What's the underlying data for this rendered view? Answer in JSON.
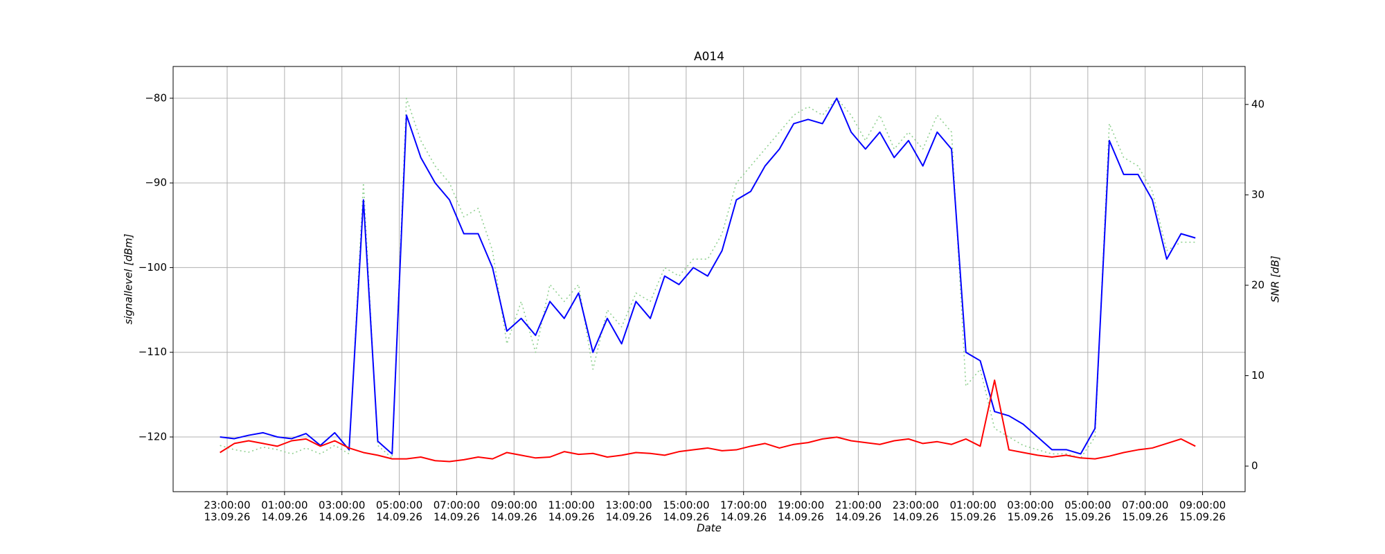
{
  "chart_data": {
    "type": "line",
    "title": "A014",
    "x_label": "Date",
    "y_label": "signallevel [dBm]",
    "y2_label": "SNR [dB]",
    "x": [
      "2026-09-13T22:45",
      "2026-09-13T23:15",
      "2026-09-13T23:45",
      "2026-09-14T00:15",
      "2026-09-14T00:45",
      "2026-09-14T01:15",
      "2026-09-14T01:45",
      "2026-09-14T02:15",
      "2026-09-14T02:45",
      "2026-09-14T03:15",
      "2026-09-14T03:45",
      "2026-09-14T04:15",
      "2026-09-14T04:45",
      "2026-09-14T05:15",
      "2026-09-14T05:45",
      "2026-09-14T06:15",
      "2026-09-14T06:45",
      "2026-09-14T07:15",
      "2026-09-14T07:45",
      "2026-09-14T08:15",
      "2026-09-14T08:45",
      "2026-09-14T09:15",
      "2026-09-14T09:45",
      "2026-09-14T10:15",
      "2026-09-14T10:45",
      "2026-09-14T11:15",
      "2026-09-14T11:45",
      "2026-09-14T12:15",
      "2026-09-14T12:45",
      "2026-09-14T13:15",
      "2026-09-14T13:45",
      "2026-09-14T14:15",
      "2026-09-14T14:45",
      "2026-09-14T15:15",
      "2026-09-14T15:45",
      "2026-09-14T16:15",
      "2026-09-14T16:45",
      "2026-09-14T17:15",
      "2026-09-14T17:45",
      "2026-09-14T18:15",
      "2026-09-14T18:45",
      "2026-09-14T19:15",
      "2026-09-14T19:45",
      "2026-09-14T20:15",
      "2026-09-14T20:45",
      "2026-09-14T21:15",
      "2026-09-14T21:45",
      "2026-09-14T22:15",
      "2026-09-14T22:45",
      "2026-09-14T23:15",
      "2026-09-14T23:45",
      "2026-09-15T00:15",
      "2026-09-15T00:45",
      "2026-09-15T01:15",
      "2026-09-15T01:45",
      "2026-09-15T02:15",
      "2026-09-15T02:45",
      "2026-09-15T03:15",
      "2026-09-15T03:45",
      "2026-09-15T04:15",
      "2026-09-15T04:45",
      "2026-09-15T05:15",
      "2026-09-15T05:45",
      "2026-09-15T06:15",
      "2026-09-15T06:45",
      "2026-09-15T07:15",
      "2026-09-15T07:45",
      "2026-09-15T08:15",
      "2026-09-15T08:45"
    ],
    "series": [
      {
        "color": "#90d090",
        "dashed": true,
        "axis": "y",
        "values": [
          -121,
          -121.5,
          -121.8,
          -121.2,
          -121.5,
          -122,
          -121.3,
          -122,
          -121,
          -122,
          -90,
          -121,
          -122.5,
          -80,
          -85,
          -88,
          -90,
          -94,
          -93,
          -98,
          -109,
          -104,
          -110,
          -102,
          -104,
          -102,
          -112,
          -105,
          -107,
          -103,
          -104,
          -100,
          -101,
          -99,
          -99,
          -96,
          -90,
          -88,
          -86,
          -84,
          -82,
          -81,
          -82,
          -80,
          -82,
          -85,
          -82,
          -86,
          -84,
          -86,
          -82,
          -84,
          -114,
          -112,
          -119,
          -120,
          -121,
          -121.5,
          -122,
          -122,
          -122.5,
          -120,
          -83,
          -87,
          -88,
          -91,
          -98,
          -97,
          -97
        ]
      },
      {
        "color": "#0000ff",
        "dashed": false,
        "axis": "y",
        "values": [
          -120,
          -120.2,
          -119.8,
          -119.5,
          -120,
          -120.2,
          -119.6,
          -121,
          -119.5,
          -121.5,
          -92,
          -120.5,
          -122,
          -82,
          -87,
          -90,
          -92,
          -96,
          -96,
          -100,
          -107.5,
          -106,
          -108,
          -104,
          -106,
          -103,
          -110,
          -106,
          -109,
          -104,
          -106,
          -101,
          -102,
          -100,
          -101,
          -98,
          -92,
          -91,
          -88,
          -86,
          -83,
          -82.5,
          -83,
          -80,
          -84,
          -86,
          -84,
          -87,
          -85,
          -88,
          -84,
          -86,
          -110,
          -111,
          -117,
          -117.5,
          -118.5,
          -120,
          -121.5,
          -121.5,
          -122,
          -119,
          -85,
          -89,
          -89,
          -92,
          -99,
          -96,
          -96.5
        ]
      },
      {
        "color": "#ff0000",
        "dashed": false,
        "axis": "y2",
        "values": [
          1.5,
          2.5,
          2.8,
          2.5,
          2.2,
          2.8,
          3.0,
          2.2,
          2.8,
          2.0,
          1.5,
          1.2,
          0.8,
          0.8,
          1.0,
          0.6,
          0.5,
          0.7,
          1.0,
          0.8,
          1.5,
          1.2,
          0.9,
          1.0,
          1.6,
          1.3,
          1.4,
          1.0,
          1.2,
          1.5,
          1.4,
          1.2,
          1.6,
          1.8,
          2.0,
          1.7,
          1.8,
          2.2,
          2.5,
          2.0,
          2.4,
          2.6,
          3.0,
          3.2,
          2.8,
          2.6,
          2.4,
          2.8,
          3.0,
          2.5,
          2.7,
          2.4,
          3.0,
          2.2,
          9.5,
          1.8,
          1.5,
          1.2,
          1.0,
          1.2,
          0.9,
          0.8,
          1.1,
          1.5,
          1.8,
          2.0,
          2.5,
          3.0,
          2.2
        ]
      }
    ],
    "xlim": [
      "2026-09-13T21:07",
      "2026-09-15T10:29"
    ],
    "xticks": [
      {
        "value": "2026-09-13T23:00",
        "label": [
          "23:00:00",
          "13.09.26"
        ]
      },
      {
        "value": "2026-09-14T01:00",
        "label": [
          "01:00:00",
          "14.09.26"
        ]
      },
      {
        "value": "2026-09-14T03:00",
        "label": [
          "03:00:00",
          "14.09.26"
        ]
      },
      {
        "value": "2026-09-14T05:00",
        "label": [
          "05:00:00",
          "14.09.26"
        ]
      },
      {
        "value": "2026-09-14T07:00",
        "label": [
          "07:00:00",
          "14.09.26"
        ]
      },
      {
        "value": "2026-09-14T09:00",
        "label": [
          "09:00:00",
          "14.09.26"
        ]
      },
      {
        "value": "2026-09-14T11:00",
        "label": [
          "11:00:00",
          "14.09.26"
        ]
      },
      {
        "value": "2026-09-14T13:00",
        "label": [
          "13:00:00",
          "14.09.26"
        ]
      },
      {
        "value": "2026-09-14T15:00",
        "label": [
          "15:00:00",
          "14.09.26"
        ]
      },
      {
        "value": "2026-09-14T17:00",
        "label": [
          "17:00:00",
          "14.09.26"
        ]
      },
      {
        "value": "2026-09-14T19:00",
        "label": [
          "19:00:00",
          "14.09.26"
        ]
      },
      {
        "value": "2026-09-14T21:00",
        "label": [
          "21:00:00",
          "14.09.26"
        ]
      },
      {
        "value": "2026-09-14T23:00",
        "label": [
          "23:00:00",
          "14.09.26"
        ]
      },
      {
        "value": "2026-09-15T01:00",
        "label": [
          "01:00:00",
          "15.09.26"
        ]
      },
      {
        "value": "2026-09-15T03:00",
        "label": [
          "03:00:00",
          "15.09.26"
        ]
      },
      {
        "value": "2026-09-15T05:00",
        "label": [
          "05:00:00",
          "15.09.26"
        ]
      },
      {
        "value": "2026-09-15T07:00",
        "label": [
          "07:00:00",
          "15.09.26"
        ]
      },
      {
        "value": "2026-09-15T09:00",
        "label": [
          "09:00:00",
          "15.09.26"
        ]
      }
    ],
    "ylim": [
      -126.46,
      -76.25
    ],
    "yticks": [
      {
        "value": -120,
        "label": "−120"
      },
      {
        "value": -110,
        "label": "−110"
      },
      {
        "value": -100,
        "label": "−100"
      },
      {
        "value": -90,
        "label": "−90"
      },
      {
        "value": -80,
        "label": "−80"
      }
    ],
    "y2lim": [
      -2.83,
      44.2
    ],
    "y2ticks": [
      0,
      10,
      20,
      30,
      40
    ],
    "grid": true
  }
}
